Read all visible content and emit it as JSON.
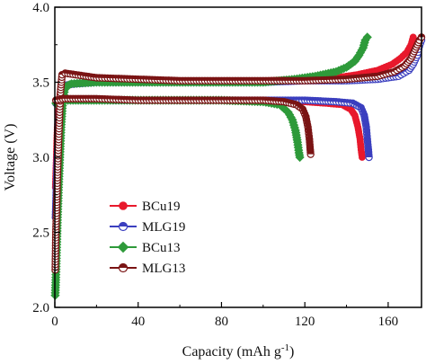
{
  "chart_data": {
    "type": "scatter",
    "xlabel": "Capacity (mAh g",
    "xlabel_sup": "-1",
    "xlabel_close": ")",
    "ylabel": "Voltage (V)",
    "xlim": [
      0,
      176
    ],
    "ylim": [
      2.0,
      4.0
    ],
    "x_ticks": [
      0,
      40,
      80,
      120,
      160
    ],
    "y_ticks": [
      2.0,
      2.5,
      3.0,
      3.5,
      4.0
    ],
    "x_tick_labels": [
      "0",
      "40",
      "80",
      "120",
      "160"
    ],
    "y_tick_labels": [
      "2.0",
      "2.5",
      "3.0",
      "3.5",
      "4.0"
    ],
    "legend_position": "center-left",
    "series": [
      {
        "name": "BCu19",
        "color": "#e8192c",
        "marker": "circle-filled",
        "charge": [
          [
            0.3,
            2.8
          ],
          [
            1.2,
            3.2
          ],
          [
            2.5,
            3.42
          ],
          [
            5,
            3.48
          ],
          [
            10,
            3.49
          ],
          [
            20,
            3.5
          ],
          [
            40,
            3.5
          ],
          [
            60,
            3.5
          ],
          [
            80,
            3.5
          ],
          [
            100,
            3.51
          ],
          [
            120,
            3.52
          ],
          [
            135,
            3.53
          ],
          [
            145,
            3.55
          ],
          [
            155,
            3.58
          ],
          [
            162,
            3.62
          ],
          [
            166,
            3.66
          ],
          [
            169,
            3.7
          ],
          [
            171,
            3.75
          ],
          [
            172,
            3.8
          ]
        ],
        "discharge": [
          [
            0.5,
            3.36
          ],
          [
            5,
            3.38
          ],
          [
            20,
            3.38
          ],
          [
            40,
            3.38
          ],
          [
            60,
            3.38
          ],
          [
            80,
            3.38
          ],
          [
            100,
            3.37
          ],
          [
            120,
            3.37
          ],
          [
            130,
            3.36
          ],
          [
            138,
            3.35
          ],
          [
            142,
            3.32
          ],
          [
            144,
            3.28
          ],
          [
            145.5,
            3.2
          ],
          [
            146.5,
            3.12
          ],
          [
            147,
            3.05
          ],
          [
            147.5,
            3.0
          ]
        ]
      },
      {
        "name": "MLG19",
        "color": "#3b3fbf",
        "marker": "circle-half",
        "charge": [
          [
            0.3,
            2.6
          ],
          [
            1.2,
            3.0
          ],
          [
            2.5,
            3.36
          ],
          [
            5,
            3.48
          ],
          [
            10,
            3.49
          ],
          [
            20,
            3.5
          ],
          [
            40,
            3.5
          ],
          [
            60,
            3.5
          ],
          [
            80,
            3.5
          ],
          [
            100,
            3.5
          ],
          [
            120,
            3.51
          ],
          [
            140,
            3.51
          ],
          [
            155,
            3.52
          ],
          [
            165,
            3.54
          ],
          [
            170,
            3.58
          ],
          [
            172,
            3.62
          ],
          [
            174,
            3.68
          ],
          [
            175,
            3.74
          ],
          [
            176,
            3.78
          ]
        ],
        "discharge": [
          [
            0.5,
            3.36
          ],
          [
            5,
            3.38
          ],
          [
            20,
            3.38
          ],
          [
            40,
            3.38
          ],
          [
            60,
            3.38
          ],
          [
            80,
            3.38
          ],
          [
            100,
            3.38
          ],
          [
            120,
            3.38
          ],
          [
            135,
            3.37
          ],
          [
            143,
            3.36
          ],
          [
            147,
            3.33
          ],
          [
            148.5,
            3.28
          ],
          [
            149.5,
            3.2
          ],
          [
            150,
            3.12
          ],
          [
            150.5,
            3.05
          ],
          [
            150.8,
            3.0
          ]
        ]
      },
      {
        "name": "BCu13",
        "color": "#2e9a3a",
        "marker": "diamond",
        "charge": [
          [
            0.2,
            2.08
          ],
          [
            0.5,
            2.2
          ],
          [
            0.9,
            2.4
          ],
          [
            1.3,
            2.6
          ],
          [
            1.8,
            2.8
          ],
          [
            2.4,
            3.0
          ],
          [
            3.0,
            3.2
          ],
          [
            3.8,
            3.38
          ],
          [
            5,
            3.47
          ],
          [
            8,
            3.49
          ],
          [
            20,
            3.5
          ],
          [
            40,
            3.5
          ],
          [
            60,
            3.5
          ],
          [
            80,
            3.5
          ],
          [
            100,
            3.5
          ],
          [
            115,
            3.52
          ],
          [
            125,
            3.54
          ],
          [
            135,
            3.57
          ],
          [
            140,
            3.6
          ],
          [
            144,
            3.64
          ],
          [
            146,
            3.68
          ],
          [
            148,
            3.73
          ],
          [
            149,
            3.78
          ],
          [
            150,
            3.8
          ]
        ],
        "discharge": [
          [
            0.5,
            3.36
          ],
          [
            5,
            3.38
          ],
          [
            20,
            3.38
          ],
          [
            40,
            3.38
          ],
          [
            60,
            3.38
          ],
          [
            80,
            3.38
          ],
          [
            100,
            3.37
          ],
          [
            108,
            3.35
          ],
          [
            112,
            3.3
          ],
          [
            114,
            3.25
          ],
          [
            115.5,
            3.18
          ],
          [
            116.5,
            3.1
          ],
          [
            117.2,
            3.03
          ],
          [
            117.6,
            3.0
          ]
        ]
      },
      {
        "name": "MLG13",
        "color": "#7a1414",
        "marker": "circle-half",
        "charge": [
          [
            0.2,
            2.25
          ],
          [
            0.5,
            2.5
          ],
          [
            0.9,
            2.7
          ],
          [
            1.3,
            2.9
          ],
          [
            1.8,
            3.1
          ],
          [
            2.3,
            3.3
          ],
          [
            2.8,
            3.45
          ],
          [
            3.5,
            3.55
          ],
          [
            5,
            3.56
          ],
          [
            10,
            3.55
          ],
          [
            20,
            3.53
          ],
          [
            40,
            3.52
          ],
          [
            60,
            3.51
          ],
          [
            80,
            3.51
          ],
          [
            100,
            3.51
          ],
          [
            120,
            3.51
          ],
          [
            140,
            3.52
          ],
          [
            155,
            3.54
          ],
          [
            163,
            3.57
          ],
          [
            168,
            3.61
          ],
          [
            171,
            3.66
          ],
          [
            173,
            3.72
          ],
          [
            175,
            3.78
          ],
          [
            176,
            3.8
          ]
        ],
        "discharge": [
          [
            0.5,
            3.38
          ],
          [
            5,
            3.39
          ],
          [
            20,
            3.39
          ],
          [
            40,
            3.38
          ],
          [
            60,
            3.38
          ],
          [
            80,
            3.38
          ],
          [
            100,
            3.38
          ],
          [
            110,
            3.37
          ],
          [
            116,
            3.35
          ],
          [
            119,
            3.32
          ],
          [
            120.5,
            3.27
          ],
          [
            121.5,
            3.2
          ],
          [
            122.2,
            3.12
          ],
          [
            122.6,
            3.05
          ],
          [
            122.8,
            3.02
          ]
        ]
      }
    ]
  }
}
